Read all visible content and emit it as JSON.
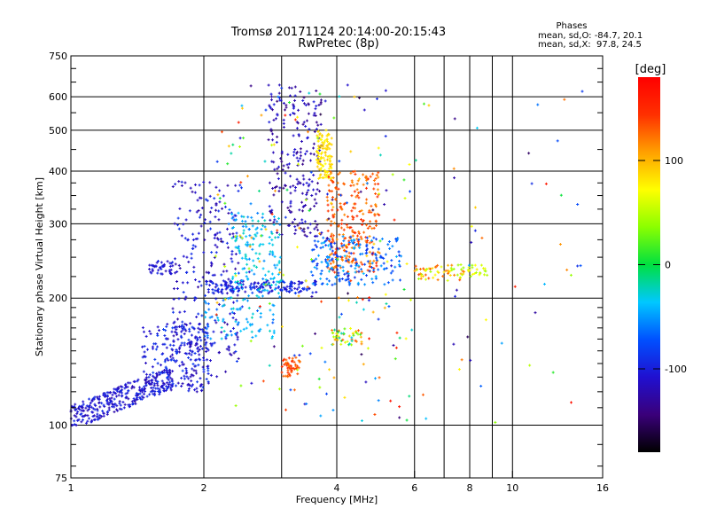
{
  "chart_data": {
    "type": "scatter",
    "title": "Tromsø 20171124 20:14:00-20:15:43",
    "subtitle": "RwPretec (8p)",
    "xlabel": "Frequency [MHz]",
    "ylabel": "Stationary phase Virtual Height [km]",
    "x_scale": "log2",
    "y_scale": "log",
    "xlim": [
      1,
      16
    ],
    "ylim": [
      75,
      750
    ],
    "x_ticks": [
      1,
      2,
      4,
      6,
      8,
      10,
      16
    ],
    "x_tick_labels": [
      "1",
      "2",
      "4",
      "6",
      "8",
      "10",
      "16"
    ],
    "x_grid": [
      1,
      2,
      3,
      4,
      6,
      7,
      8,
      9,
      10,
      16
    ],
    "y_ticks": [
      75,
      100,
      200,
      300,
      400,
      500,
      600,
      750
    ],
    "y_tick_labels": [
      "75",
      "100",
      "200",
      "300",
      "400",
      "500",
      "600",
      "750"
    ],
    "y_minor_ticks": [
      80,
      90,
      110,
      120,
      130,
      140,
      150,
      160,
      170,
      180,
      190,
      225,
      250,
      275,
      325,
      350,
      375,
      450,
      550,
      650,
      700
    ],
    "grid": true,
    "stats": {
      "heading": "Phases",
      "line1": "mean, sd,O: -84.7, 20.1",
      "line2": "mean, sd,X:  97.8, 24.5"
    },
    "colorbar": {
      "label": "[deg]",
      "range": [
        -180,
        180
      ],
      "ticks": [
        100,
        0,
        -100
      ],
      "tick_labels": [
        "100",
        "0",
        "-100"
      ],
      "colormap": "rainbow-dark"
    },
    "clusters": [
      {
        "f": [
          1.0,
          1.7
        ],
        "h": [
          100,
          135
        ],
        "phase": [
          -125,
          -90
        ],
        "n": 320,
        "trend": true
      },
      {
        "f": [
          1.45,
          2.05
        ],
        "h": [
          120,
          175
        ],
        "phase": [
          -125,
          -80
        ],
        "n": 220
      },
      {
        "f": [
          1.7,
          2.4
        ],
        "h": [
          130,
          380
        ],
        "phase": [
          -130,
          -85
        ],
        "n": 260
      },
      {
        "f": [
          1.5,
          1.7
        ],
        "h": [
          228,
          245
        ],
        "phase": [
          -120,
          -95
        ],
        "n": 40
      },
      {
        "f": [
          2.0,
          3.6
        ],
        "h": [
          205,
          220
        ],
        "phase": [
          -115,
          -80
        ],
        "n": 160
      },
      {
        "f": [
          2.3,
          3.0
        ],
        "h": [
          200,
          320
        ],
        "phase": [
          -60,
          -20
        ],
        "n": 150
      },
      {
        "f": [
          2.8,
          3.7
        ],
        "h": [
          280,
          640
        ],
        "phase": [
          -140,
          -100
        ],
        "n": 230
      },
      {
        "f": [
          3.6,
          3.9
        ],
        "h": [
          380,
          500
        ],
        "phase": [
          70,
          95
        ],
        "n": 110
      },
      {
        "f": [
          3.8,
          5.0
        ],
        "h": [
          230,
          400
        ],
        "phase": [
          110,
          150
        ],
        "n": 260
      },
      {
        "f": [
          3.5,
          5.6
        ],
        "h": [
          215,
          280
        ],
        "phase": [
          -90,
          -40
        ],
        "n": 200
      },
      {
        "f": [
          3.0,
          3.3
        ],
        "h": [
          130,
          145
        ],
        "phase": [
          120,
          150
        ],
        "n": 50
      },
      {
        "f": [
          2.0,
          2.9
        ],
        "h": [
          160,
          200
        ],
        "phase": [
          -70,
          -20
        ],
        "n": 80
      },
      {
        "f": [
          3.9,
          4.6
        ],
        "h": [
          155,
          170
        ],
        "phase": [
          -40,
          140
        ],
        "n": 50
      },
      {
        "f": [
          6.0,
          7.8
        ],
        "h": [
          220,
          240
        ],
        "phase": [
          40,
          140
        ],
        "n": 60
      },
      {
        "f": [
          7.5,
          8.8
        ],
        "h": [
          225,
          240
        ],
        "phase": [
          40,
          80
        ],
        "n": 25
      },
      {
        "f": [
          2.1,
          6.0
        ],
        "h": [
          100,
          640
        ],
        "phase": [
          -160,
          170
        ],
        "n": 220
      },
      {
        "f": [
          5.0,
          14.5
        ],
        "h": [
          100,
          640
        ],
        "phase": [
          -160,
          170
        ],
        "n": 50
      }
    ]
  }
}
